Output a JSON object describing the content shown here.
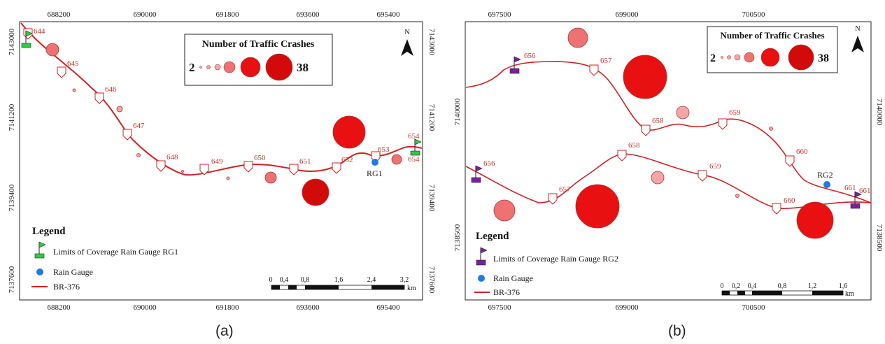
{
  "panels": [
    {
      "id": "a",
      "caption": "(a)",
      "top_ticks": [
        "688200",
        "690000",
        "691800",
        "693600",
        "695400"
      ],
      "bottom_ticks": [
        "688200",
        "690000",
        "691800",
        "693600",
        "695400"
      ],
      "left_ticks": [
        "7143000",
        "7141200",
        "7139400",
        "7137600"
      ],
      "right_ticks": [
        "7143000",
        "7141200",
        "7139400",
        "7137600"
      ],
      "km_markers": [
        "644",
        "645",
        "646",
        "647",
        "648",
        "649",
        "650",
        "651",
        "652",
        "653",
        "654",
        "654"
      ],
      "gauge_label": "RG1",
      "legend": {
        "title": "Legend",
        "flag_item": "Limits of Coverage Rain Gauge RG1",
        "gauge_item": "Rain Gauge",
        "road_item": "BR-376"
      },
      "crash_legend": {
        "title": "Number of Traffic Crashes",
        "min": "2",
        "max": "38"
      },
      "scale": {
        "labels": [
          "0",
          "0,4",
          "0,8",
          "1,6",
          "2,4",
          "3,2"
        ],
        "unit": "km"
      },
      "north": "N"
    },
    {
      "id": "b",
      "caption": "(b)",
      "top_ticks": [
        "697500",
        "699000",
        "700500"
      ],
      "bottom_ticks": [
        "697500",
        "699000",
        "700500"
      ],
      "left_ticks": [
        "7140000",
        "7138500"
      ],
      "right_ticks": [
        "7140000",
        "7138500"
      ],
      "km_markers_upper": [
        "656",
        "657",
        "658",
        "659",
        "660",
        "661"
      ],
      "km_markers_lower": [
        "656",
        "657",
        "658",
        "659",
        "660",
        "661"
      ],
      "gauge_label": "RG2",
      "legend": {
        "title": "Legend",
        "flag_item": "Limits of Coverage Rain Gauge RG2",
        "gauge_item": "Rain Gauge",
        "road_item": "BR-376"
      },
      "crash_legend": {
        "title": "Number of Traffic Crashes",
        "min": "2",
        "max": "38"
      },
      "scale": {
        "labels": [
          "0",
          "0,2",
          "0,4",
          "0,8",
          "1,2",
          "1,6"
        ],
        "unit": "km"
      },
      "north": "N"
    }
  ],
  "colors": {
    "road": "#cc2222",
    "label": "#c0392b",
    "flag_rg1": "#2ecc40",
    "flag_rg2": "#7b1fa2",
    "gauge": "#1e7be0",
    "crash_small": "#f4a6a6",
    "crash_mid": "#ee7272",
    "crash_large": "#e81010",
    "crash_dark": "#d20a0a"
  }
}
